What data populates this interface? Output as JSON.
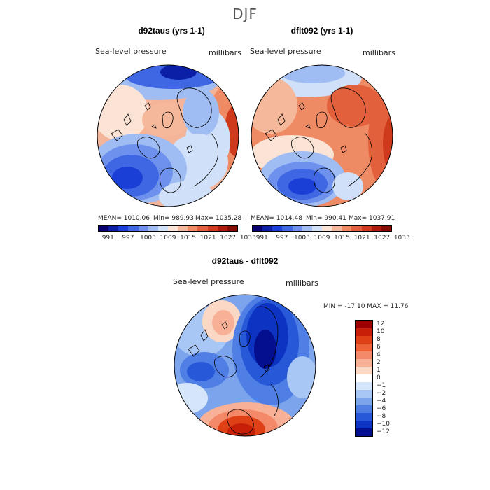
{
  "figure": {
    "season": "DJF"
  },
  "panels": [
    {
      "title": "d92taus (yrs 1-1)",
      "variable": "Sea-level pressure",
      "units": "millibars",
      "stats": {
        "mean": "MEAN= 1010.06",
        "min": "Min= 989.93",
        "max": "Max= 1035.28"
      }
    },
    {
      "title": "dflt092 (yrs 1-1)",
      "variable": "Sea-level pressure",
      "units": "millibars",
      "stats": {
        "mean": "MEAN= 1014.48",
        "min": "Min= 990.41",
        "max": "Max= 1037.91"
      }
    },
    {
      "title": "d92taus - dflt092",
      "variable": "Sea-level pressure",
      "units": "millibars",
      "stats": {
        "minmax": "MIN = -17.10  MAX =   11.76"
      }
    }
  ],
  "abs_colorbar": {
    "colors": [
      "#08006e",
      "#0a1fa6",
      "#1a3fd6",
      "#3f66e3",
      "#6d91ec",
      "#9fbdf3",
      "#cfe0f8",
      "#fbe3d5",
      "#f6b89a",
      "#ee8a64",
      "#e2603c",
      "#cf3a1c",
      "#b01a0c",
      "#850a00"
    ],
    "labels": [
      "991",
      "997",
      "1003",
      "1009",
      "1015",
      "1021",
      "1027",
      "1033"
    ]
  },
  "diff_colorbar": {
    "colors": [
      "#9c0000",
      "#c62108",
      "#e04016",
      "#ed6236",
      "#f4896a",
      "#f8b196",
      "#fbd8c6",
      "#ffffff",
      "#d6e6fa",
      "#a9c7f4",
      "#7ba4ec",
      "#4f7fe4",
      "#2758d8",
      "#0c33c2",
      "#030f8e"
    ],
    "labels": [
      "12",
      "10",
      "8",
      "6",
      "4",
      "2",
      "1",
      "0",
      "−1",
      "−2",
      "−4",
      "−6",
      "−8",
      "−10",
      "−12"
    ]
  }
}
